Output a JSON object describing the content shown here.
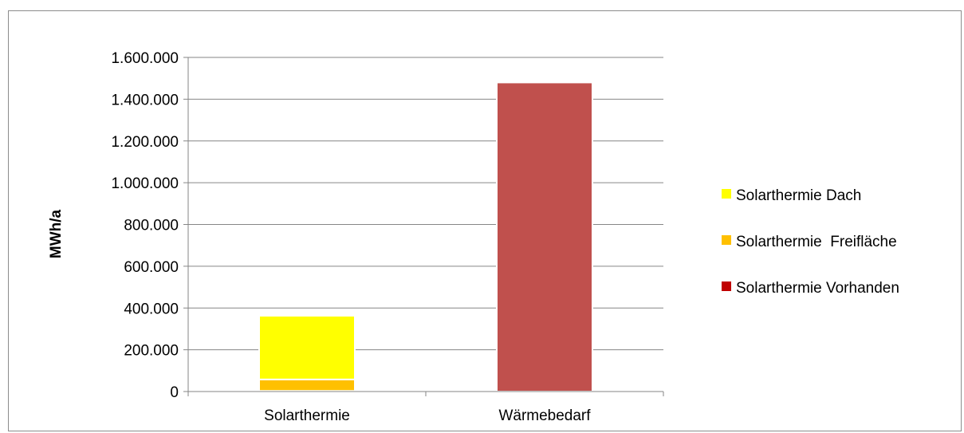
{
  "chart_data": {
    "type": "bar",
    "stacked": true,
    "categories": [
      "Solarthermie",
      "Wärmebedarf"
    ],
    "ylabel": "MWh/a",
    "xlabel": "",
    "title": "",
    "ylim": [
      0,
      1600000
    ],
    "yticks": [
      0,
      200000,
      400000,
      600000,
      800000,
      1000000,
      1200000,
      1400000,
      1600000
    ],
    "ytick_labels": [
      "0",
      "200.000",
      "400.000",
      "600.000",
      "800.000",
      "1.000.000",
      "1.200.000",
      "1.400.000",
      "1.600.000"
    ],
    "grid": true,
    "legend_position": "right",
    "series": [
      {
        "name": "Solarthermie Vorhanden",
        "color": "#C00000",
        "values": [
          3000,
          0
        ]
      },
      {
        "name": "Solarthermie  Freifläche",
        "color": "#FFC000",
        "values": [
          55000,
          0
        ]
      },
      {
        "name": "Solarthermie Dach",
        "color": "#FFFF00",
        "values": [
          305000,
          0
        ]
      },
      {
        "name": "",
        "color": "#C0504D",
        "values": [
          0,
          1480000
        ]
      }
    ],
    "legend": [
      {
        "name": "Solarthermie Dach",
        "color": "#FFFF00"
      },
      {
        "name": "Solarthermie  Freifläche",
        "color": "#FFC000"
      },
      {
        "name": "Solarthermie Vorhanden",
        "color": "#C00000"
      }
    ]
  }
}
